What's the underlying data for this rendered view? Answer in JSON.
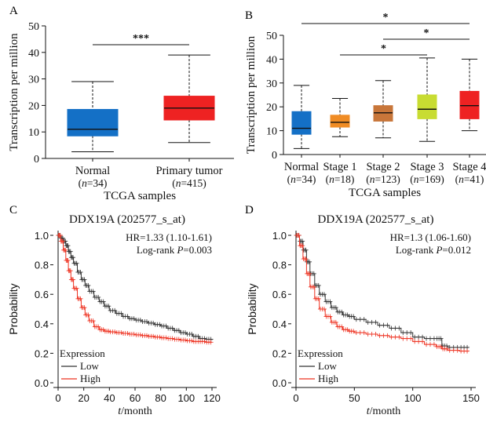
{
  "colors": {
    "normal": "#1470c6",
    "tumor": "#ee2222",
    "stage1": "#f08c24",
    "stage2": "#c8763a",
    "stage3": "#c8dc32",
    "stage4": "#ee2222",
    "km_low": "#333333",
    "km_high": "#ee3322"
  },
  "chart_data": [
    {
      "panel": "A",
      "type": "box",
      "ylabel": "Transcription per million",
      "xlabel": "TCGA samples",
      "ylim": [
        0,
        50
      ],
      "yticks": [
        0,
        10,
        20,
        30,
        40,
        50
      ],
      "significance": [
        {
          "from": 0,
          "to": 1,
          "label": "***"
        }
      ],
      "groups": [
        {
          "name": "Normal",
          "n": "(n=34)",
          "min": 2.5,
          "q1": 8.5,
          "median": 11,
          "q3": 18.5,
          "max": 29,
          "color": "normal"
        },
        {
          "name": "Primary tumor",
          "n": "(n=415)",
          "min": 6,
          "q1": 14.5,
          "median": 19,
          "q3": 23.5,
          "max": 39,
          "color": "tumor"
        }
      ]
    },
    {
      "panel": "B",
      "type": "box",
      "ylabel": "Transcription per million",
      "xlabel": "TCGA samples",
      "ylim": [
        0,
        50
      ],
      "yticks": [
        0,
        10,
        20,
        30,
        40,
        50
      ],
      "significance": [
        {
          "from": 0,
          "to": 4,
          "label": "*"
        },
        {
          "from": 2,
          "to": 4,
          "label": "*"
        },
        {
          "from": 1,
          "to": 3,
          "label": "*"
        }
      ],
      "groups": [
        {
          "name": "Normal",
          "n": "(n=34)",
          "min": 2.5,
          "q1": 8.5,
          "median": 11,
          "q3": 18,
          "max": 29,
          "color": "normal"
        },
        {
          "name": "Stage 1",
          "n": "(n=18)",
          "min": 7.5,
          "q1": 11.5,
          "median": 13.5,
          "q3": 16.5,
          "max": 23.5,
          "color": "stage1"
        },
        {
          "name": "Stage 2",
          "n": "(n=123)",
          "min": 7,
          "q1": 14,
          "median": 17.5,
          "q3": 20.5,
          "max": 31,
          "color": "stage2"
        },
        {
          "name": "Stage 3",
          "n": "(n=169)",
          "min": 5.5,
          "q1": 15,
          "median": 19,
          "q3": 25,
          "max": 40.5,
          "color": "stage3"
        },
        {
          "name": "Stage 4",
          "n": "(n=41)",
          "min": 10,
          "q1": 15,
          "median": 20.5,
          "q3": 26.5,
          "max": 40,
          "color": "stage4"
        }
      ]
    },
    {
      "panel": "C",
      "type": "line",
      "title": "DDX19A (202577_s_at)",
      "ylabel": "Probability",
      "xlabel": "t/month",
      "xlim": [
        0,
        120
      ],
      "xticks": [
        0,
        20,
        40,
        60,
        80,
        100,
        120
      ],
      "ylim": [
        0,
        1
      ],
      "yticks": [
        "0.0",
        "0.2",
        "0.4",
        "0.6",
        "0.8",
        "1.0"
      ],
      "hr": "HR=1.33 (1.10-1.61)",
      "logrank": "Log-rank P=0.003",
      "legend_title": "Expression",
      "series": [
        {
          "name": "Low",
          "color": "km_low",
          "x": [
            0,
            2,
            4,
            6,
            8,
            10,
            12,
            15,
            18,
            21,
            24,
            28,
            32,
            36,
            40,
            45,
            50,
            55,
            60,
            65,
            70,
            75,
            80,
            85,
            90,
            95,
            100,
            105,
            110,
            115,
            120
          ],
          "y": [
            1.0,
            0.98,
            0.96,
            0.93,
            0.89,
            0.85,
            0.81,
            0.75,
            0.7,
            0.66,
            0.62,
            0.58,
            0.55,
            0.52,
            0.49,
            0.47,
            0.45,
            0.435,
            0.425,
            0.415,
            0.405,
            0.395,
            0.385,
            0.37,
            0.355,
            0.34,
            0.33,
            0.315,
            0.3,
            0.295,
            0.29
          ]
        },
        {
          "name": "High",
          "color": "km_high",
          "x": [
            0,
            2,
            4,
            6,
            8,
            10,
            12,
            15,
            18,
            21,
            24,
            28,
            32,
            36,
            40,
            45,
            50,
            55,
            60,
            65,
            70,
            75,
            80,
            85,
            90,
            95,
            100,
            105,
            110,
            115,
            120
          ],
          "y": [
            1.0,
            0.96,
            0.9,
            0.83,
            0.76,
            0.7,
            0.64,
            0.57,
            0.51,
            0.46,
            0.42,
            0.38,
            0.36,
            0.35,
            0.345,
            0.34,
            0.335,
            0.33,
            0.325,
            0.32,
            0.315,
            0.31,
            0.305,
            0.3,
            0.295,
            0.29,
            0.285,
            0.28,
            0.28,
            0.275,
            0.275
          ]
        }
      ]
    },
    {
      "panel": "D",
      "type": "line",
      "title": "DDX19A (202577_s_at)",
      "ylabel": "Probability",
      "xlabel": "t/month",
      "xlim": [
        0,
        150
      ],
      "xticks": [
        0,
        50,
        100,
        150
      ],
      "ylim": [
        0,
        1
      ],
      "yticks": [
        "0.0",
        "0.2",
        "0.4",
        "0.6",
        "0.8",
        "1.0"
      ],
      "hr": "HR=1.3 (1.06-1.60)",
      "logrank": "Log-rank P=0.012",
      "legend_title": "Expression",
      "series": [
        {
          "name": "Low",
          "color": "km_low",
          "x": [
            0,
            3,
            6,
            9,
            12,
            16,
            20,
            25,
            30,
            35,
            40,
            45,
            50,
            60,
            70,
            80,
            90,
            100,
            110,
            120,
            125,
            130,
            140,
            148
          ],
          "y": [
            1.0,
            0.96,
            0.9,
            0.82,
            0.74,
            0.66,
            0.6,
            0.55,
            0.51,
            0.48,
            0.46,
            0.45,
            0.43,
            0.41,
            0.39,
            0.37,
            0.34,
            0.31,
            0.3,
            0.3,
            0.25,
            0.24,
            0.24,
            0.24
          ]
        },
        {
          "name": "High",
          "color": "km_high",
          "x": [
            0,
            3,
            6,
            9,
            12,
            16,
            20,
            25,
            30,
            35,
            40,
            45,
            50,
            60,
            70,
            80,
            90,
            100,
            110,
            120,
            125,
            130,
            140,
            148
          ],
          "y": [
            1.0,
            0.93,
            0.84,
            0.74,
            0.65,
            0.57,
            0.5,
            0.45,
            0.41,
            0.38,
            0.36,
            0.35,
            0.34,
            0.33,
            0.32,
            0.31,
            0.3,
            0.28,
            0.26,
            0.245,
            0.23,
            0.22,
            0.215,
            0.215
          ]
        }
      ]
    }
  ],
  "labels": {
    "A": "A",
    "B": "B",
    "C": "C",
    "D": "D"
  }
}
